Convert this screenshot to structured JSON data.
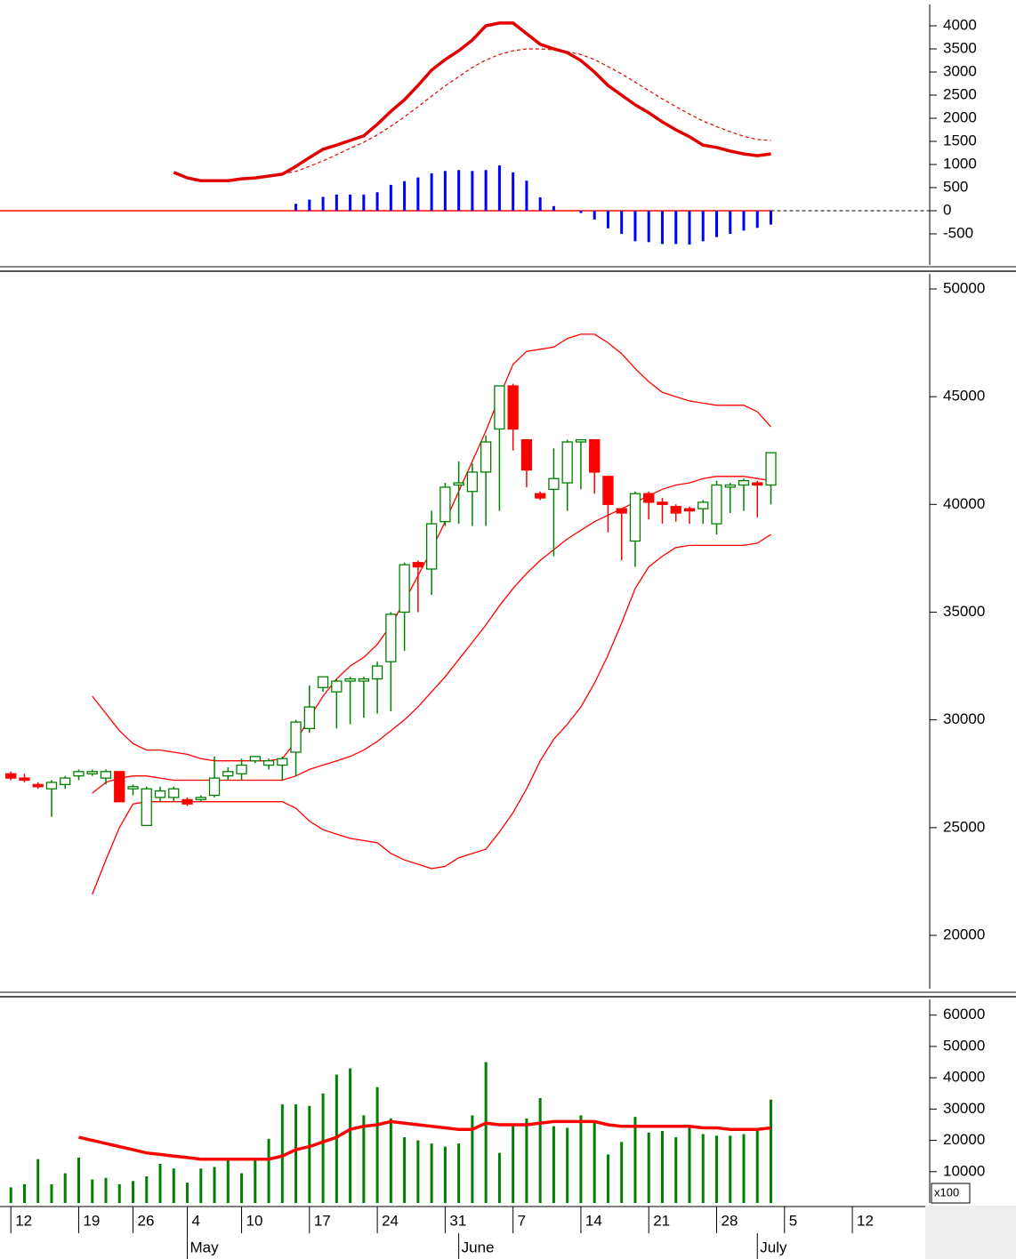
{
  "chart_data": [
    {
      "type": "macd",
      "xlim": [
        -0.8,
        67.7
      ],
      "ylim": [
        -1173,
        4462
      ],
      "yticks": [
        4000,
        3500,
        3000,
        2500,
        2000,
        1500,
        1000,
        500,
        0,
        -500
      ],
      "series": [
        {
          "color": "#e00000",
          "style": "solid",
          "values": [
            null,
            null,
            null,
            null,
            null,
            null,
            null,
            null,
            null,
            null,
            null,
            null,
            830,
            710,
            650,
            650,
            650,
            690,
            710,
            750,
            790,
            960,
            1150,
            1330,
            1420,
            1520,
            1620,
            1870,
            2150,
            2400,
            2710,
            3040,
            3270,
            3460,
            3690,
            4000,
            4060,
            4060,
            3830,
            3600,
            3500,
            3420,
            3250,
            3000,
            2710,
            2500,
            2290,
            2120,
            1920,
            1750,
            1600,
            1420,
            1370,
            1290,
            1230,
            1190,
            1230
          ]
        },
        {
          "color": "#e00000",
          "style": "dashed",
          "values": [
            null,
            null,
            null,
            null,
            null,
            null,
            null,
            null,
            null,
            null,
            null,
            null,
            null,
            null,
            null,
            null,
            null,
            null,
            null,
            null,
            800,
            850,
            960,
            1080,
            1210,
            1350,
            1480,
            1640,
            1830,
            2030,
            2250,
            2480,
            2700,
            2900,
            3100,
            3260,
            3380,
            3460,
            3500,
            3500,
            3480,
            3440,
            3380,
            3270,
            3120,
            2960,
            2780,
            2600,
            2420,
            2250,
            2090,
            1940,
            1820,
            1710,
            1610,
            1540,
            1520
          ]
        },
        {
          "color": "#0000ff",
          "style": "bar",
          "values": [
            null,
            null,
            null,
            null,
            null,
            null,
            null,
            null,
            null,
            null,
            null,
            null,
            null,
            null,
            null,
            null,
            null,
            null,
            null,
            null,
            null,
            150,
            240,
            300,
            350,
            350,
            350,
            400,
            560,
            640,
            720,
            810,
            860,
            880,
            860,
            880,
            980,
            830,
            650,
            290,
            100,
            0,
            -50,
            -190,
            -380,
            -500,
            -660,
            -680,
            -720,
            -720,
            -730,
            -660,
            -570,
            -500,
            -430,
            -370,
            -300
          ]
        }
      ]
    },
    {
      "type": "candlestick",
      "xlim": [
        -0.8,
        67.7
      ],
      "ylim": [
        17400,
        50700
      ],
      "yticks": [
        50000,
        45000,
        40000,
        35000,
        30000,
        25000,
        20000
      ],
      "up_color": "#008000",
      "down_color": "#ff0000",
      "open": [
        27500,
        27300,
        27000,
        26800,
        27000,
        27400,
        27500,
        27300,
        27600,
        26800,
        25100,
        26400,
        26400,
        26300,
        26300,
        26500,
        27400,
        27500,
        28100,
        27900,
        27900,
        28500,
        29600,
        31500,
        31300,
        31800,
        31800,
        31900,
        32700,
        35000,
        37300,
        37000,
        39200,
        40900,
        40600,
        41500,
        43500,
        45500,
        43000,
        40500,
        40700,
        41000,
        42900,
        43000,
        41300,
        39800,
        38300,
        40500,
        40100,
        39900,
        39800,
        39800,
        39100,
        40800,
        40900,
        41000,
        40900
      ],
      "high": [
        27600,
        27500,
        27100,
        27200,
        27400,
        27700,
        27700,
        27700,
        27600,
        27000,
        26900,
        26900,
        26900,
        26400,
        26500,
        28300,
        27800,
        28200,
        28300,
        28200,
        28300,
        30000,
        31600,
        32000,
        31900,
        32000,
        32000,
        32700,
        35000,
        37300,
        37400,
        39700,
        41000,
        42000,
        41900,
        43200,
        45500,
        45600,
        43000,
        40600,
        42600,
        43000,
        43000,
        43000,
        41300,
        39800,
        40600,
        40600,
        40300,
        40000,
        39900,
        40200,
        41100,
        41000,
        41200,
        41100,
        42400
      ],
      "low": [
        27200,
        27100,
        26800,
        25500,
        26800,
        27200,
        27400,
        27000,
        26200,
        26500,
        25100,
        26200,
        26200,
        26000,
        26200,
        26400,
        27200,
        27200,
        28000,
        27700,
        27200,
        27400,
        29400,
        31300,
        29600,
        29800,
        30100,
        30300,
        30400,
        33200,
        35000,
        35800,
        39000,
        39100,
        39000,
        39000,
        39700,
        42500,
        40800,
        40200,
        37600,
        39700,
        40700,
        40500,
        38700,
        37400,
        37100,
        39300,
        39100,
        39200,
        39100,
        39100,
        38600,
        39600,
        39700,
        39400,
        40000
      ],
      "close": [
        27300,
        27200,
        26900,
        27100,
        27300,
        27600,
        27600,
        27600,
        26200,
        26900,
        26800,
        26700,
        26800,
        26100,
        26400,
        27300,
        27600,
        27900,
        28300,
        28100,
        28200,
        29900,
        30600,
        32000,
        31800,
        31900,
        31900,
        32500,
        34900,
        37200,
        37100,
        39100,
        40800,
        41000,
        41500,
        42900,
        45500,
        43500,
        41600,
        40300,
        41200,
        42900,
        43000,
        41500,
        40000,
        39600,
        40500,
        40100,
        40000,
        39600,
        39700,
        40100,
        40900,
        40900,
        41100,
        40900,
        42400
      ],
      "overlays": [
        {
          "color": "#ff0000",
          "values": [
            null,
            null,
            null,
            null,
            null,
            null,
            31100,
            30300,
            29500,
            28900,
            28600,
            28600,
            28500,
            28400,
            28200,
            28100,
            28100,
            28100,
            28100,
            28100,
            28200,
            29000,
            30100,
            31100,
            31900,
            32500,
            32900,
            33500,
            34400,
            35500,
            36700,
            37900,
            39200,
            40600,
            42000,
            43400,
            45000,
            46500,
            47100,
            47200,
            47300,
            47700,
            47900,
            47900,
            47500,
            47000,
            46300,
            45700,
            45200,
            45000,
            44800,
            44700,
            44600,
            44600,
            44600,
            44300,
            43600
          ]
        },
        {
          "color": "#ff0000",
          "values": [
            null,
            null,
            null,
            null,
            null,
            null,
            26600,
            27100,
            27300,
            27400,
            27400,
            27300,
            27200,
            27200,
            27200,
            27200,
            27200,
            27200,
            27200,
            27200,
            27200,
            27400,
            27700,
            27900,
            28100,
            28300,
            28600,
            29000,
            29500,
            30000,
            30600,
            31300,
            32000,
            32800,
            33600,
            34400,
            35300,
            36100,
            36800,
            37400,
            37900,
            38400,
            38800,
            39200,
            39500,
            39800,
            40100,
            40400,
            40700,
            40900,
            41000,
            41200,
            41300,
            41300,
            41300,
            41200,
            41100
          ]
        },
        {
          "color": "#ff0000",
          "values": [
            null,
            null,
            null,
            null,
            null,
            null,
            21900,
            23500,
            25000,
            26100,
            26200,
            26200,
            26200,
            26200,
            26200,
            26200,
            26200,
            26200,
            26200,
            26200,
            26200,
            25900,
            25300,
            24900,
            24700,
            24500,
            24400,
            24300,
            23800,
            23500,
            23300,
            23100,
            23200,
            23600,
            23800,
            24000,
            24800,
            25700,
            26800,
            28100,
            29100,
            29800,
            30600,
            31700,
            33000,
            34500,
            36100,
            37100,
            37600,
            38000,
            38100,
            38100,
            38100,
            38100,
            38100,
            38200,
            38600
          ]
        }
      ]
    },
    {
      "type": "volume",
      "xlim": [
        -0.8,
        67.7
      ],
      "ylim": [
        0,
        65600
      ],
      "yticks": [
        60000,
        50000,
        40000,
        30000,
        20000,
        10000
      ],
      "unit_label": "x100",
      "color": "#008000",
      "values": [
        5000,
        6000,
        14000,
        6000,
        9500,
        14500,
        7500,
        8000,
        6000,
        7000,
        8500,
        12500,
        11000,
        6500,
        11000,
        11500,
        14000,
        9500,
        13500,
        20500,
        31500,
        31500,
        31000,
        35000,
        41000,
        43000,
        28000,
        37000,
        27000,
        21000,
        20000,
        19000,
        18000,
        19000,
        28000,
        45000,
        16000,
        25000,
        27000,
        33500,
        24500,
        24000,
        28000,
        26000,
        15500,
        19500,
        27500,
        22500,
        23000,
        21000,
        24000,
        22000,
        21500,
        21500,
        22000,
        23500,
        33000
      ],
      "average": {
        "color": "#ff0000",
        "values": [
          null,
          null,
          null,
          null,
          null,
          21000,
          20000,
          19000,
          18000,
          17000,
          16000,
          15500,
          15000,
          14500,
          14000,
          14000,
          14000,
          14000,
          14000,
          14000,
          15000,
          17000,
          18000,
          19500,
          21000,
          23500,
          24500,
          25000,
          26000,
          25500,
          25000,
          24500,
          24000,
          23500,
          23500,
          25500,
          25000,
          25000,
          25000,
          25500,
          26000,
          26000,
          26000,
          26000,
          25000,
          24500,
          24500,
          24500,
          24500,
          24500,
          24500,
          24000,
          24000,
          23500,
          23500,
          23500,
          24000
        ]
      },
      "xticks": [
        {
          "value": 0,
          "label": "12"
        },
        {
          "value": 5,
          "label": "19"
        },
        {
          "value": 9,
          "label": "26"
        },
        {
          "value": 13,
          "label": "4"
        },
        {
          "value": 17,
          "label": "10"
        },
        {
          "value": 22,
          "label": "17"
        },
        {
          "value": 27,
          "label": "24"
        },
        {
          "value": 32,
          "label": "31"
        },
        {
          "value": 37,
          "label": "7"
        },
        {
          "value": 42,
          "label": "14"
        },
        {
          "value": 47,
          "label": "21"
        },
        {
          "value": 52,
          "label": "28"
        },
        {
          "value": 57,
          "label": "5"
        },
        {
          "value": 62,
          "label": "12"
        }
      ],
      "month_ticks": [
        {
          "value": 13,
          "label": "May"
        },
        {
          "value": 33,
          "label": "June"
        },
        {
          "value": 55,
          "label": "July"
        }
      ]
    }
  ]
}
